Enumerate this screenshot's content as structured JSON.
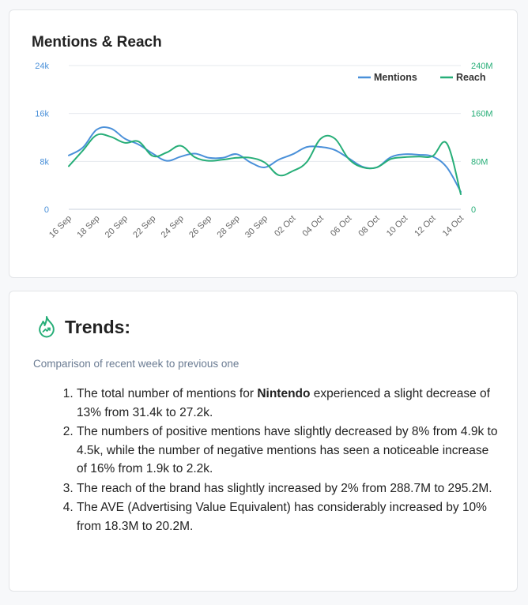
{
  "chart_card": {
    "title": "Mentions & Reach"
  },
  "chart_data": {
    "type": "line",
    "title": "Mentions & Reach",
    "legend_position": "top-right",
    "grid": true,
    "x": [
      "16 Sep",
      "17 Sep",
      "18 Sep",
      "19 Sep",
      "20 Sep",
      "21 Sep",
      "22 Sep",
      "23 Sep",
      "24 Sep",
      "25 Sep",
      "26 Sep",
      "27 Sep",
      "28 Sep",
      "29 Sep",
      "30 Sep",
      "01 Oct",
      "02 Oct",
      "03 Oct",
      "04 Oct",
      "05 Oct",
      "06 Oct",
      "07 Oct",
      "08 Oct",
      "09 Oct",
      "10 Oct",
      "11 Oct",
      "12 Oct",
      "13 Oct",
      "14 Oct"
    ],
    "x_tick_labels": [
      "16 Sep",
      "18 Sep",
      "20 Sep",
      "22 Sep",
      "24 Sep",
      "26 Sep",
      "28 Sep",
      "30 Sep",
      "02 Oct",
      "04 Oct",
      "06 Oct",
      "08 Oct",
      "10 Oct",
      "12 Oct",
      "14 Oct"
    ],
    "y_left": {
      "ticks": [
        "0",
        "8k",
        "16k",
        "24k"
      ],
      "tick_values": [
        0,
        8000,
        16000,
        24000
      ],
      "ylim": [
        0,
        24000
      ],
      "color": "#4a90d9"
    },
    "y_right": {
      "ticks": [
        "0",
        "80M",
        "160M",
        "240M"
      ],
      "tick_values": [
        0,
        80,
        160,
        240
      ],
      "ylim": [
        0,
        240
      ],
      "unit": "M",
      "color": "#27ae78"
    },
    "series": [
      {
        "name": "Mentions",
        "axis": "left",
        "color": "#4a90d9",
        "values": [
          9000,
          10300,
          13300,
          13500,
          11800,
          10800,
          9300,
          8100,
          8800,
          9300,
          8600,
          8600,
          9200,
          7800,
          7000,
          8300,
          9200,
          10400,
          10400,
          9900,
          8500,
          7100,
          7000,
          8700,
          9200,
          9100,
          8800,
          7000,
          2900
        ]
      },
      {
        "name": "Reach",
        "axis": "right",
        "color": "#27ae78",
        "values": [
          72,
          98,
          124,
          121,
          111,
          113,
          89,
          95,
          106,
          87,
          81,
          83,
          86,
          86,
          78,
          57,
          64,
          79,
          118,
          118,
          84,
          70,
          70,
          84,
          87,
          88,
          89,
          110,
          25
        ]
      }
    ]
  },
  "trends": {
    "title": "Trends:",
    "subtitle": "Comparison of recent week to previous one",
    "item1_before": "The total number of mentions for ",
    "item1_brand": "Nintendo",
    "item1_after": " experienced a slight decrease of 13% from 31.4k to 27.2k.",
    "item2": "The numbers of positive mentions have slightly decreased by 8% from 4.9k to 4.5k, while the number of negative mentions has seen a noticeable increase of 16% from 1.9k to 2.2k.",
    "item3": "The reach of the brand has slightly increased by 2% from 288.7M to 295.2M.",
    "item4": "The AVE (Advertising Value Equivalent) has considerably increased by 10% from 18.3M to 20.2M."
  },
  "icons": {
    "trends_icon": "flame-trend-icon",
    "trends_icon_color": "#27ae78"
  }
}
